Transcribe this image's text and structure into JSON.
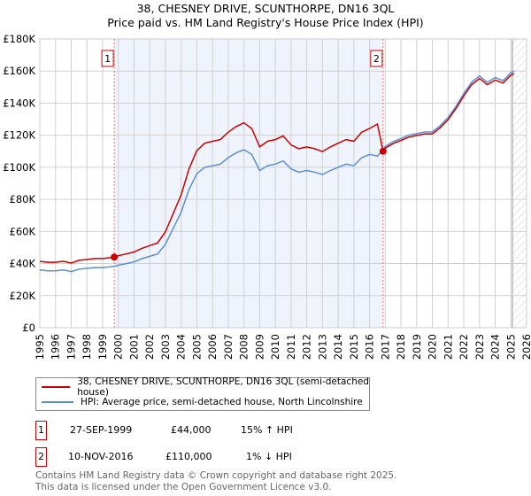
{
  "chart_data": {
    "type": "line",
    "title": "38, CHESNEY DRIVE, SCUNTHORPE, DN16 3QL",
    "subtitle": "Price paid vs. HM Land Registry's House Price Index (HPI)",
    "xlim": [
      1995,
      2026
    ],
    "ylim": [
      0,
      180000
    ],
    "x_ticks": [
      "1995",
      "1996",
      "1997",
      "1998",
      "1999",
      "2000",
      "2001",
      "2002",
      "2003",
      "2004",
      "2005",
      "2006",
      "2007",
      "2008",
      "2009",
      "2010",
      "2011",
      "2012",
      "2013",
      "2014",
      "2015",
      "2016",
      "2017",
      "2018",
      "2019",
      "2020",
      "2021",
      "2022",
      "2023",
      "2024",
      "2025",
      "2026"
    ],
    "y_ticks": [
      {
        "v": 0,
        "label": "£0"
      },
      {
        "v": 20000,
        "label": "£20K"
      },
      {
        "v": 40000,
        "label": "£40K"
      },
      {
        "v": 60000,
        "label": "£60K"
      },
      {
        "v": 80000,
        "label": "£80K"
      },
      {
        "v": 100000,
        "label": "£100K"
      },
      {
        "v": 120000,
        "label": "£120K"
      },
      {
        "v": 140000,
        "label": "£140K"
      },
      {
        "v": 160000,
        "label": "£160K"
      },
      {
        "v": 180000,
        "label": "£180K"
      }
    ],
    "grid": true,
    "shaded_range": [
      1999.74,
      2016.86
    ],
    "hatched_from": 2025.1,
    "x": [
      1995,
      1995.5,
      1996,
      1996.5,
      1997,
      1997.5,
      1998,
      1998.5,
      1999,
      1999.5,
      1999.74,
      2000,
      2000.5,
      2001,
      2001.5,
      2002,
      2002.5,
      2003,
      2003.5,
      2004,
      2004.5,
      2005,
      2005.5,
      2006,
      2006.5,
      2007,
      2007.5,
      2008,
      2008.5,
      2009,
      2009.5,
      2010,
      2010.5,
      2011,
      2011.5,
      2012,
      2012.5,
      2013,
      2013.5,
      2014,
      2014.5,
      2015,
      2015.5,
      2016,
      2016.5,
      2016.86,
      2017,
      2017.5,
      2018,
      2018.5,
      2019,
      2019.5,
      2020,
      2020.5,
      2021,
      2021.5,
      2022,
      2022.5,
      2023,
      2023.5,
      2024,
      2024.5,
      2025,
      2025.2
    ],
    "series": [
      {
        "name": "38, CHESNEY DRIVE, SCUNTHORPE, DN16 3QL (semi-detached house)",
        "color": "#cc0000",
        "values": [
          41400,
          40800,
          40800,
          41400,
          40300,
          42000,
          42500,
          43100,
          43100,
          43700,
          44000,
          44900,
          46000,
          47200,
          49500,
          51200,
          52900,
          59800,
          71300,
          82800,
          98900,
          110400,
          115000,
          116200,
          117300,
          121900,
          125400,
          127700,
          124200,
          112700,
          116200,
          117300,
          119600,
          113900,
          111600,
          112700,
          111600,
          109800,
          112700,
          115000,
          117300,
          116200,
          121900,
          124200,
          127000,
          110000,
          111900,
          114800,
          116800,
          118800,
          119800,
          120800,
          120800,
          124700,
          129700,
          136600,
          144500,
          151500,
          155400,
          151500,
          154400,
          152500,
          157400,
          158400
        ]
      },
      {
        "name": "HPI: Average price, semi-detached house, North Lincolnshire",
        "color": "#5b8fd4",
        "values": [
          36000,
          35500,
          35500,
          36000,
          35000,
          36500,
          37000,
          37500,
          37500,
          38000,
          38300,
          39000,
          40000,
          41000,
          43000,
          44500,
          46000,
          52000,
          62000,
          72000,
          86000,
          96000,
          100000,
          101000,
          102000,
          106000,
          109000,
          111000,
          108000,
          98000,
          101000,
          102000,
          104000,
          99000,
          97000,
          98000,
          97000,
          95500,
          98000,
          100000,
          102000,
          101000,
          106000,
          108000,
          107000,
          111000,
          113000,
          116000,
          118000,
          120000,
          121000,
          122000,
          122000,
          126000,
          131000,
          138000,
          146000,
          153000,
          157000,
          153000,
          156000,
          154000,
          159000,
          160000
        ]
      }
    ],
    "sales": [
      {
        "label": "1",
        "x": 1999.74,
        "value": 44000
      },
      {
        "label": "2",
        "x": 2016.86,
        "value": 110000
      }
    ]
  },
  "legend": {
    "property": "38, CHESNEY DRIVE, SCUNTHORPE, DN16 3QL (semi-detached house)",
    "hpi": "HPI: Average price, semi-detached house, North Lincolnshire"
  },
  "transactions": [
    {
      "num": "1",
      "date": "27-SEP-1999",
      "price": "£44,000",
      "hpi": "15% ↑ HPI"
    },
    {
      "num": "2",
      "date": "10-NOV-2016",
      "price": "£110,000",
      "hpi": "1% ↓ HPI"
    }
  ],
  "footer": {
    "line1": "Contains HM Land Registry data © Crown copyright and database right 2025.",
    "line2": "This data is licensed under the Open Government Licence v3.0."
  }
}
